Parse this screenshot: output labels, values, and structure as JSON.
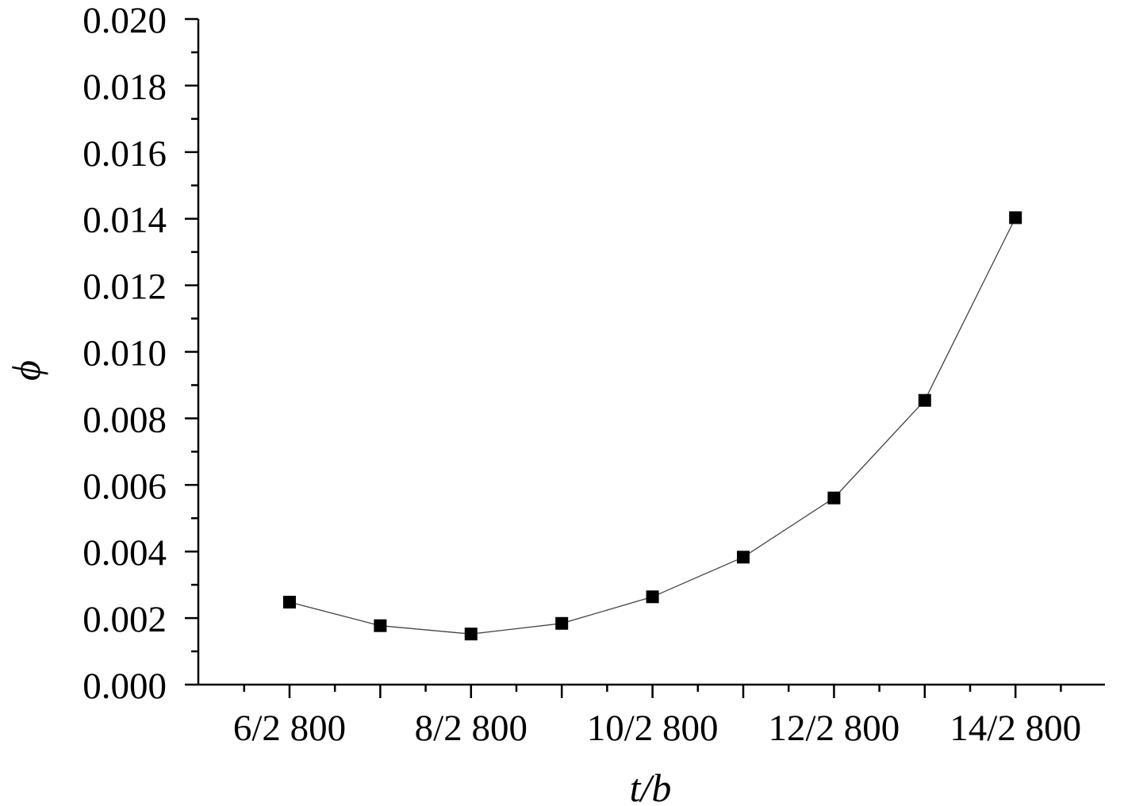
{
  "chart_data": {
    "type": "line",
    "title": "",
    "xlabel": "t/b",
    "ylabel": "ϕ",
    "x_categories": [
      "6/2 800",
      "7/2 800",
      "8/2 800",
      "9/2 800",
      "10/2 800",
      "11/2 800",
      "12/2 800",
      "13/2 800",
      "14/2 800"
    ],
    "x_tick_labels": [
      "6/2 800",
      "8/2 800",
      "10/2 800",
      "12/2 800",
      "14/2 800"
    ],
    "y_tick_labels": [
      "0.000",
      "0.002",
      "0.004",
      "0.006",
      "0.008",
      "0.010",
      "0.012",
      "0.014",
      "0.016",
      "0.018",
      "0.020"
    ],
    "ylim": [
      0,
      0.02
    ],
    "grid": false,
    "legend": "none",
    "marker": "square",
    "series": [
      {
        "values": [
          0.00248,
          0.00177,
          0.00152,
          0.00184,
          0.00264,
          0.00383,
          0.00561,
          0.00854,
          0.01403
        ],
        "color": "#000000"
      }
    ]
  }
}
